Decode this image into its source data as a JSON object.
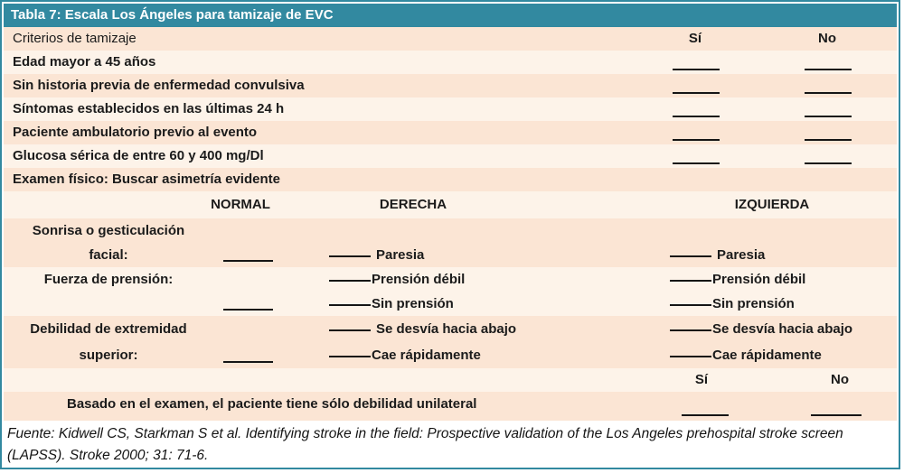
{
  "colors": {
    "header_teal": "#3289A0",
    "row_peach": "#FBE5D4",
    "row_cream": "#FDF3E9",
    "text": "#1b1b1b"
  },
  "title": "Tabla 7: Escala Los Ángeles para tamizaje de EVC",
  "screening": {
    "header_label": "Criterios de tamizaje",
    "yes": "Sí",
    "no": "No",
    "rows": [
      "Edad mayor a 45 años",
      "Sin historia previa de enfermedad convulsiva",
      "Síntomas establecidos en las últimas 24 h",
      "Paciente ambulatorio previo al evento",
      "Glucosa sérica de entre 60 y 400 mg/Dl"
    ],
    "exam_intro": "Examen físico: Buscar asimetría evidente"
  },
  "exam": {
    "col_normal": "NORMAL",
    "col_derecha": "DERECHA",
    "col_izquierda": "IZQUIERDA",
    "sonrisa": {
      "label_line1": "Sonrisa o gesticulación",
      "label_line2": "facial:",
      "paresia": "Paresia"
    },
    "fuerza": {
      "label_line1": "Fuerza de prensión:",
      "debil": "Prensión débil",
      "sin": "Sin prensión"
    },
    "debilidad": {
      "label_line1": "Debilidad de extremidad",
      "label_line2": "superior:",
      "desvia": "Se desvía hacia abajo",
      "cae": "Cae rápidamente"
    },
    "yes": "Sí",
    "no": "No",
    "unilateral": "Basado en el examen, el paciente tiene sólo debilidad unilateral"
  },
  "source": "Fuente: Kidwell CS, Starkman S et al. Identifying stroke in the field: Prospective validation of the Los Angeles prehospital stroke screen (LAPSS). Stroke 2000; 31: 71-6."
}
